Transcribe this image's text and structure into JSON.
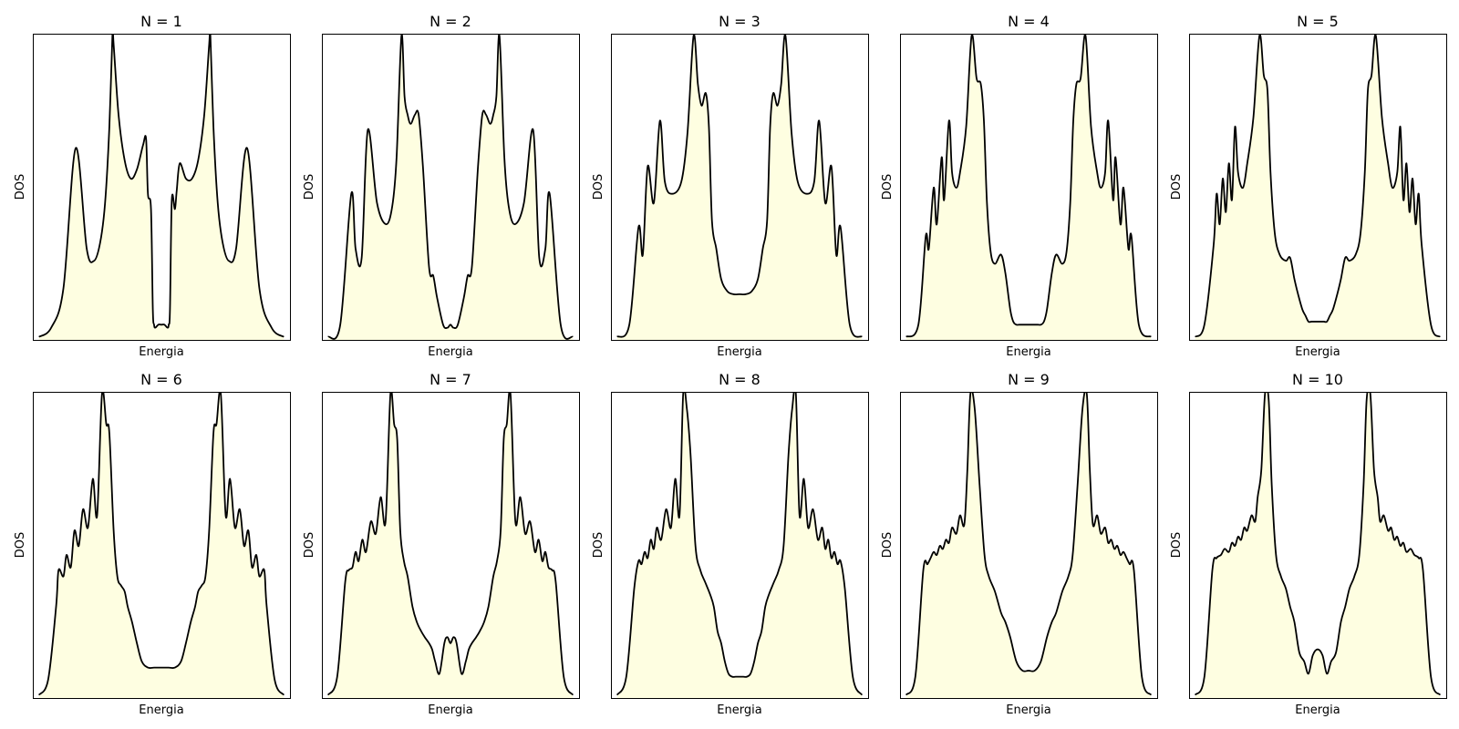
{
  "figure": {
    "colors": {
      "fill": "#fefee1",
      "line": "#000000",
      "frame": "#000000"
    }
  },
  "chart_data": [
    {
      "type": "area",
      "title": "N = 1",
      "xlabel": "Energia",
      "ylabel": "DOS",
      "x": [
        -2.0,
        -1.8,
        -1.6,
        -1.4,
        -1.22,
        -1.1,
        -1.0,
        -0.92,
        -0.85,
        -0.8,
        -0.78,
        -0.7,
        -0.6,
        -0.5,
        -0.4,
        -0.3,
        -0.25,
        -0.22,
        -0.17,
        -0.14,
        -0.12,
        -0.1,
        -0.05,
        0.0,
        0.05,
        0.1,
        0.12,
        0.14,
        0.17,
        0.22,
        0.25,
        0.3,
        0.4,
        0.5,
        0.6,
        0.7,
        0.78,
        0.8,
        0.85,
        0.92,
        1.0,
        1.1,
        1.22,
        1.4,
        1.6,
        1.8,
        2.0
      ],
      "values": [
        0.01,
        0.04,
        0.17,
        0.63,
        0.3,
        0.26,
        0.32,
        0.45,
        0.7,
        1.0,
        0.97,
        0.74,
        0.59,
        0.53,
        0.56,
        0.64,
        0.66,
        0.48,
        0.43,
        0.1,
        0.05,
        0.04,
        0.05,
        0.05,
        0.05,
        0.04,
        0.05,
        0.1,
        0.46,
        0.43,
        0.49,
        0.58,
        0.53,
        0.53,
        0.59,
        0.74,
        0.97,
        1.0,
        0.7,
        0.45,
        0.32,
        0.26,
        0.3,
        0.63,
        0.17,
        0.04,
        0.01
      ],
      "xlim": [
        -2.1,
        2.1
      ],
      "ylim": [
        0,
        1.0
      ]
    },
    {
      "type": "area",
      "title": "N = 2",
      "xlabel": "Energia",
      "ylabel": "DOS",
      "x": [
        -2.0,
        -1.8,
        -1.62,
        -1.55,
        -1.45,
        -1.35,
        -1.2,
        -1.05,
        -0.95,
        -0.88,
        -0.8,
        -0.75,
        -0.7,
        -0.65,
        -0.58,
        -0.52,
        -0.45,
        -0.35,
        -0.28,
        -0.22,
        -0.12,
        -0.05,
        0.0,
        0.05,
        0.12,
        0.22,
        0.28,
        0.35,
        0.45,
        0.52,
        0.58,
        0.65,
        0.7,
        0.75,
        0.8,
        0.88,
        0.95,
        1.05,
        1.2,
        1.35,
        1.45,
        1.55,
        1.62,
        1.8,
        2.0
      ],
      "values": [
        0.01,
        0.05,
        0.48,
        0.3,
        0.27,
        0.69,
        0.45,
        0.38,
        0.44,
        0.6,
        1.0,
        0.8,
        0.74,
        0.71,
        0.74,
        0.74,
        0.57,
        0.24,
        0.21,
        0.14,
        0.05,
        0.04,
        0.05,
        0.04,
        0.05,
        0.14,
        0.21,
        0.24,
        0.57,
        0.74,
        0.74,
        0.71,
        0.74,
        0.8,
        1.0,
        0.6,
        0.44,
        0.38,
        0.45,
        0.69,
        0.27,
        0.3,
        0.48,
        0.05,
        0.01
      ],
      "xlim": [
        -2.1,
        2.1
      ],
      "ylim": [
        0,
        1.0
      ]
    },
    {
      "type": "area",
      "title": "N = 3",
      "xlabel": "Energia",
      "ylabel": "DOS",
      "x": [
        -2.0,
        -1.8,
        -1.65,
        -1.58,
        -1.5,
        -1.4,
        -1.3,
        -1.22,
        -1.1,
        -0.95,
        -0.85,
        -0.75,
        -0.68,
        -0.62,
        -0.55,
        -0.5,
        -0.45,
        -0.38,
        -0.3,
        -0.2,
        -0.1,
        0.0,
        0.1,
        0.2,
        0.3,
        0.38,
        0.45,
        0.5,
        0.55,
        0.62,
        0.68,
        0.75,
        0.85,
        0.95,
        1.1,
        1.22,
        1.3,
        1.4,
        1.5,
        1.58,
        1.65,
        1.8,
        2.0
      ],
      "values": [
        0.01,
        0.05,
        0.37,
        0.28,
        0.57,
        0.45,
        0.72,
        0.52,
        0.48,
        0.52,
        0.68,
        1.0,
        0.84,
        0.77,
        0.81,
        0.7,
        0.39,
        0.3,
        0.2,
        0.16,
        0.15,
        0.15,
        0.15,
        0.16,
        0.2,
        0.3,
        0.39,
        0.7,
        0.81,
        0.77,
        0.84,
        1.0,
        0.68,
        0.52,
        0.48,
        0.52,
        0.72,
        0.45,
        0.57,
        0.28,
        0.37,
        0.05,
        0.01
      ],
      "xlim": [
        -2.1,
        2.1
      ],
      "ylim": [
        0,
        1.0
      ]
    },
    {
      "type": "area",
      "title": "N = 4",
      "xlabel": "Energia",
      "ylabel": "DOS",
      "x": [
        -2.0,
        -1.8,
        -1.68,
        -1.63,
        -1.55,
        -1.5,
        -1.42,
        -1.38,
        -1.3,
        -1.25,
        -1.18,
        -1.12,
        -1.02,
        -0.93,
        -0.85,
        -0.78,
        -0.73,
        -0.68,
        -0.62,
        -0.55,
        -0.45,
        -0.38,
        -0.3,
        -0.25,
        -0.2,
        -0.15,
        -0.1,
        -0.05,
        0.0,
        0.05,
        0.1,
        0.15,
        0.2,
        0.25,
        0.3,
        0.38,
        0.45,
        0.55,
        0.62,
        0.68,
        0.73,
        0.78,
        0.85,
        0.93,
        1.02,
        1.12,
        1.18,
        1.25,
        1.3,
        1.38,
        1.42,
        1.5,
        1.55,
        1.63,
        1.68,
        1.8,
        2.0
      ],
      "values": [
        0.01,
        0.05,
        0.34,
        0.3,
        0.5,
        0.38,
        0.6,
        0.46,
        0.72,
        0.55,
        0.5,
        0.55,
        0.7,
        1.0,
        0.86,
        0.84,
        0.72,
        0.45,
        0.29,
        0.25,
        0.28,
        0.22,
        0.1,
        0.06,
        0.05,
        0.05,
        0.05,
        0.05,
        0.05,
        0.05,
        0.05,
        0.05,
        0.05,
        0.06,
        0.1,
        0.22,
        0.28,
        0.25,
        0.29,
        0.45,
        0.72,
        0.84,
        0.86,
        1.0,
        0.7,
        0.55,
        0.5,
        0.55,
        0.72,
        0.46,
        0.6,
        0.38,
        0.5,
        0.3,
        0.34,
        0.05,
        0.01
      ],
      "xlim": [
        -2.1,
        2.1
      ],
      "ylim": [
        0,
        1.0
      ]
    },
    {
      "type": "area",
      "title": "N = 5",
      "xlabel": "Energia",
      "ylabel": "DOS",
      "x": [
        -2.0,
        -1.85,
        -1.7,
        -1.65,
        -1.6,
        -1.55,
        -1.5,
        -1.45,
        -1.4,
        -1.35,
        -1.3,
        -1.22,
        -1.15,
        -1.05,
        -0.95,
        -0.88,
        -0.82,
        -0.77,
        -0.7,
        -0.62,
        -0.52,
        -0.45,
        -0.38,
        -0.32,
        -0.25,
        -0.2,
        -0.15,
        -0.1,
        0.0,
        0.1,
        0.15,
        0.2,
        0.25,
        0.32,
        0.38,
        0.45,
        0.52,
        0.62,
        0.7,
        0.77,
        0.82,
        0.88,
        0.95,
        1.05,
        1.15,
        1.22,
        1.3,
        1.35,
        1.4,
        1.45,
        1.5,
        1.55,
        1.6,
        1.65,
        1.7,
        1.85,
        2.0
      ],
      "values": [
        0.01,
        0.05,
        0.31,
        0.48,
        0.38,
        0.53,
        0.42,
        0.58,
        0.46,
        0.7,
        0.55,
        0.5,
        0.58,
        0.73,
        1.0,
        0.87,
        0.82,
        0.55,
        0.35,
        0.28,
        0.26,
        0.27,
        0.2,
        0.15,
        0.1,
        0.08,
        0.06,
        0.06,
        0.06,
        0.06,
        0.06,
        0.08,
        0.1,
        0.15,
        0.2,
        0.27,
        0.26,
        0.28,
        0.35,
        0.55,
        0.82,
        0.87,
        1.0,
        0.73,
        0.58,
        0.5,
        0.55,
        0.7,
        0.46,
        0.58,
        0.42,
        0.53,
        0.38,
        0.48,
        0.31,
        0.05,
        0.01
      ],
      "xlim": [
        -2.1,
        2.1
      ],
      "ylim": [
        0,
        1.0
      ]
    },
    {
      "type": "area",
      "title": "N = 6",
      "xlabel": "Energia",
      "ylabel": "DOS",
      "x": [
        -2.0,
        -1.85,
        -1.72,
        -1.68,
        -1.6,
        -1.55,
        -1.48,
        -1.42,
        -1.35,
        -1.28,
        -1.2,
        -1.12,
        -1.05,
        -0.97,
        -0.9,
        -0.85,
        -0.78,
        -0.72,
        -0.66,
        -0.6,
        -0.55,
        -0.48,
        -0.4,
        -0.32,
        -0.22,
        -0.12,
        0.0,
        0.12,
        0.22,
        0.32,
        0.4,
        0.48,
        0.55,
        0.6,
        0.66,
        0.72,
        0.78,
        0.85,
        0.9,
        0.97,
        1.05,
        1.12,
        1.2,
        1.28,
        1.35,
        1.42,
        1.48,
        1.55,
        1.6,
        1.68,
        1.72,
        1.85,
        2.0
      ],
      "values": [
        0.01,
        0.06,
        0.3,
        0.42,
        0.4,
        0.47,
        0.43,
        0.55,
        0.5,
        0.62,
        0.56,
        0.72,
        0.6,
        1.0,
        0.9,
        0.87,
        0.55,
        0.4,
        0.37,
        0.35,
        0.3,
        0.25,
        0.18,
        0.12,
        0.1,
        0.1,
        0.1,
        0.1,
        0.1,
        0.12,
        0.18,
        0.25,
        0.3,
        0.35,
        0.37,
        0.4,
        0.55,
        0.87,
        0.9,
        1.0,
        0.6,
        0.72,
        0.56,
        0.62,
        0.5,
        0.55,
        0.43,
        0.47,
        0.4,
        0.42,
        0.3,
        0.06,
        0.01
      ],
      "xlim": [
        -2.1,
        2.1
      ],
      "ylim": [
        0,
        1.0
      ]
    },
    {
      "type": "area",
      "title": "N = 7",
      "xlabel": "Energia",
      "ylabel": "DOS",
      "x": [
        -2.0,
        -1.85,
        -1.72,
        -1.66,
        -1.6,
        -1.55,
        -1.5,
        -1.44,
        -1.38,
        -1.3,
        -1.22,
        -1.14,
        -1.06,
        -0.98,
        -0.92,
        -0.87,
        -0.82,
        -0.76,
        -0.7,
        -0.62,
        -0.55,
        -0.48,
        -0.42,
        -0.35,
        -0.3,
        -0.25,
        -0.18,
        -0.1,
        -0.05,
        0.0,
        0.05,
        0.1,
        0.18,
        0.25,
        0.3,
        0.35,
        0.42,
        0.48,
        0.55,
        0.62,
        0.7,
        0.76,
        0.82,
        0.87,
        0.92,
        0.98,
        1.06,
        1.14,
        1.22,
        1.3,
        1.38,
        1.44,
        1.5,
        1.55,
        1.6,
        1.66,
        1.72,
        1.85,
        2.0
      ],
      "values": [
        0.01,
        0.07,
        0.38,
        0.42,
        0.43,
        0.48,
        0.45,
        0.52,
        0.48,
        0.58,
        0.54,
        0.66,
        0.58,
        1.0,
        0.9,
        0.85,
        0.55,
        0.45,
        0.4,
        0.3,
        0.25,
        0.22,
        0.2,
        0.18,
        0.16,
        0.12,
        0.08,
        0.18,
        0.2,
        0.18,
        0.2,
        0.18,
        0.08,
        0.12,
        0.16,
        0.18,
        0.2,
        0.22,
        0.25,
        0.3,
        0.4,
        0.45,
        0.55,
        0.85,
        0.9,
        1.0,
        0.58,
        0.66,
        0.54,
        0.58,
        0.48,
        0.52,
        0.45,
        0.48,
        0.43,
        0.42,
        0.38,
        0.07,
        0.01
      ],
      "xlim": [
        -2.1,
        2.1
      ],
      "ylim": [
        0,
        1.0
      ]
    },
    {
      "type": "area",
      "title": "N = 8",
      "xlabel": "Energia",
      "ylabel": "DOS",
      "x": [
        -2.0,
        -1.85,
        -1.72,
        -1.65,
        -1.6,
        -1.55,
        -1.5,
        -1.45,
        -1.4,
        -1.35,
        -1.28,
        -1.2,
        -1.12,
        -1.05,
        -0.98,
        -0.92,
        -0.86,
        -0.8,
        -0.72,
        -0.64,
        -0.56,
        -0.48,
        -0.42,
        -0.36,
        -0.3,
        -0.24,
        -0.18,
        -0.12,
        -0.06,
        0.0,
        0.06,
        0.12,
        0.18,
        0.24,
        0.3,
        0.36,
        0.42,
        0.48,
        0.56,
        0.64,
        0.72,
        0.8,
        0.86,
        0.92,
        0.98,
        1.05,
        1.12,
        1.2,
        1.28,
        1.35,
        1.4,
        1.45,
        1.5,
        1.55,
        1.6,
        1.65,
        1.72,
        1.85,
        2.0
      ],
      "values": [
        0.01,
        0.07,
        0.36,
        0.45,
        0.44,
        0.48,
        0.46,
        0.52,
        0.49,
        0.56,
        0.52,
        0.62,
        0.56,
        0.72,
        0.6,
        1.0,
        0.95,
        0.8,
        0.5,
        0.42,
        0.38,
        0.34,
        0.3,
        0.22,
        0.18,
        0.12,
        0.08,
        0.07,
        0.07,
        0.07,
        0.07,
        0.07,
        0.08,
        0.12,
        0.18,
        0.22,
        0.3,
        0.34,
        0.38,
        0.42,
        0.5,
        0.8,
        0.95,
        1.0,
        0.6,
        0.72,
        0.56,
        0.62,
        0.52,
        0.56,
        0.49,
        0.52,
        0.46,
        0.48,
        0.44,
        0.45,
        0.36,
        0.07,
        0.01
      ],
      "xlim": [
        -2.1,
        2.1
      ],
      "ylim": [
        0,
        1.0
      ]
    },
    {
      "type": "area",
      "title": "N = 9",
      "xlabel": "Energia",
      "ylabel": "DOS",
      "x": [
        -2.0,
        -1.85,
        -1.72,
        -1.65,
        -1.6,
        -1.55,
        -1.5,
        -1.45,
        -1.4,
        -1.35,
        -1.3,
        -1.25,
        -1.18,
        -1.12,
        -1.05,
        -1.0,
        -0.95,
        -0.88,
        -0.8,
        -0.72,
        -0.65,
        -0.55,
        -0.45,
        -0.38,
        -0.3,
        -0.2,
        -0.1,
        0.0,
        0.1,
        0.2,
        0.3,
        0.38,
        0.45,
        0.55,
        0.65,
        0.72,
        0.8,
        0.88,
        0.95,
        1.0,
        1.05,
        1.12,
        1.18,
        1.25,
        1.3,
        1.35,
        1.4,
        1.45,
        1.5,
        1.55,
        1.6,
        1.65,
        1.72,
        1.85,
        2.0
      ],
      "values": [
        0.01,
        0.07,
        0.42,
        0.44,
        0.46,
        0.48,
        0.47,
        0.5,
        0.49,
        0.52,
        0.51,
        0.56,
        0.54,
        0.6,
        0.57,
        0.75,
        1.0,
        0.95,
        0.7,
        0.47,
        0.4,
        0.35,
        0.28,
        0.25,
        0.2,
        0.12,
        0.09,
        0.09,
        0.09,
        0.12,
        0.2,
        0.25,
        0.28,
        0.35,
        0.4,
        0.47,
        0.7,
        0.95,
        1.0,
        0.75,
        0.57,
        0.6,
        0.54,
        0.56,
        0.51,
        0.52,
        0.49,
        0.5,
        0.47,
        0.48,
        0.46,
        0.44,
        0.42,
        0.07,
        0.01
      ],
      "xlim": [
        -2.1,
        2.1
      ],
      "ylim": [
        0,
        1.0
      ]
    },
    {
      "type": "area",
      "title": "N = 10",
      "xlabel": "Energia",
      "ylabel": "DOS",
      "x": [
        -2.0,
        -1.85,
        -1.72,
        -1.65,
        -1.58,
        -1.52,
        -1.45,
        -1.4,
        -1.35,
        -1.3,
        -1.25,
        -1.2,
        -1.15,
        -1.08,
        -1.02,
        -0.98,
        -0.92,
        -0.86,
        -0.8,
        -0.75,
        -0.68,
        -0.6,
        -0.52,
        -0.45,
        -0.38,
        -0.3,
        -0.22,
        -0.15,
        -0.08,
        0.0,
        0.08,
        0.15,
        0.22,
        0.3,
        0.38,
        0.45,
        0.52,
        0.6,
        0.68,
        0.75,
        0.8,
        0.86,
        0.92,
        0.98,
        1.02,
        1.08,
        1.15,
        1.2,
        1.25,
        1.3,
        1.35,
        1.4,
        1.45,
        1.52,
        1.58,
        1.65,
        1.72,
        1.85,
        2.0
      ],
      "values": [
        0.01,
        0.07,
        0.42,
        0.46,
        0.47,
        0.49,
        0.48,
        0.51,
        0.5,
        0.53,
        0.52,
        0.56,
        0.55,
        0.6,
        0.58,
        0.66,
        0.75,
        1.0,
        0.98,
        0.7,
        0.47,
        0.4,
        0.36,
        0.3,
        0.25,
        0.15,
        0.12,
        0.08,
        0.14,
        0.16,
        0.14,
        0.08,
        0.12,
        0.15,
        0.25,
        0.3,
        0.36,
        0.4,
        0.47,
        0.7,
        0.98,
        1.0,
        0.75,
        0.66,
        0.58,
        0.6,
        0.55,
        0.56,
        0.52,
        0.53,
        0.5,
        0.51,
        0.48,
        0.49,
        0.47,
        0.46,
        0.42,
        0.07,
        0.01
      ],
      "xlim": [
        -2.1,
        2.1
      ],
      "ylim": [
        0,
        1.0
      ]
    }
  ]
}
